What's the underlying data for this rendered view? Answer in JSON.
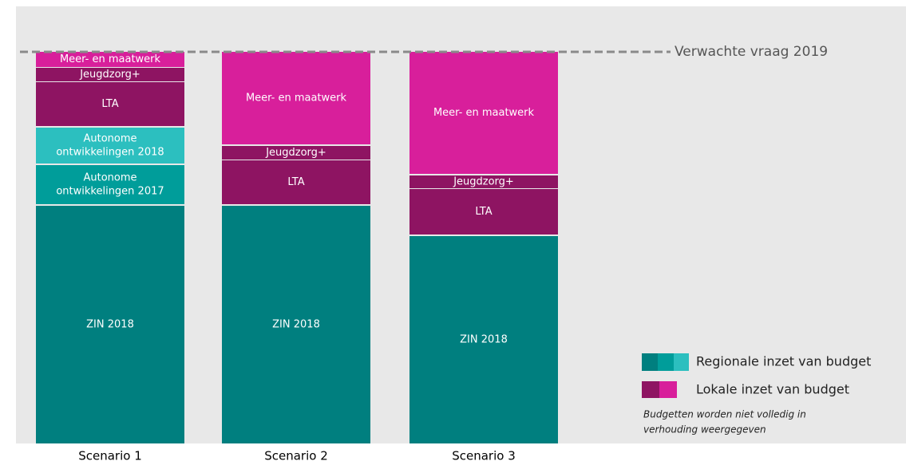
{
  "bars": [
    {
      "label": "Scenario 1",
      "segments": [
        {
          "label": [
            "Meer- en maatwerk"
          ]
        },
        {
          "label": [
            "Jeugdzorg+"
          ]
        },
        {
          "label": [
            "LTA"
          ]
        },
        {
          "label": [
            "Autonome",
            "ontwikkelingen 2018"
          ]
        },
        {
          "label": [
            "Autonome",
            "ontwikkelingen 2017"
          ]
        },
        {
          "label": [
            "ZIN 2018"
          ]
        }
      ]
    },
    {
      "label": "Scenario 2",
      "segments": [
        {
          "label": [
            "Meer- en maatwerk"
          ]
        },
        {
          "label": [
            "Jeugdzorg+"
          ]
        },
        {
          "label": [
            "LTA"
          ]
        },
        {
          "label": [
            "ZIN 2018"
          ]
        }
      ]
    },
    {
      "label": "Scenario 3",
      "segments": [
        {
          "label": [
            "Meer- en maatwerk"
          ]
        },
        {
          "label": [
            "Jeugdzorg+"
          ]
        },
        {
          "label": [
            "LTA"
          ]
        },
        {
          "label": [
            "ZIN 2018"
          ]
        }
      ]
    }
  ],
  "reference_line": {
    "label": "Verwachte vraag 2019"
  },
  "legend": [
    {
      "label": "Regionale inzet van budget"
    },
    {
      "label": "Lokale inzet van budget"
    }
  ],
  "note": [
    "Budgetten worden niet volledig in",
    "verhouding weergegeven"
  ]
}
